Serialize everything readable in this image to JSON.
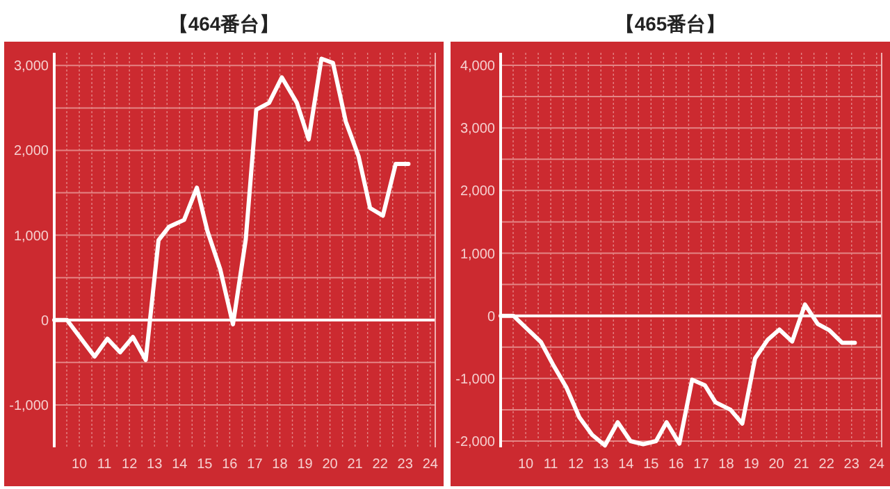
{
  "chart_data": [
    {
      "type": "line",
      "title": "【464番台】",
      "xlim": [
        9,
        24.2
      ],
      "ylim": [
        -1500,
        3150
      ],
      "xticks": [
        {
          "value": 9.5,
          "label": null
        },
        10,
        {
          "value": 10.5,
          "label": null
        },
        11,
        {
          "value": 11.5,
          "label": null
        },
        12,
        {
          "value": 12.5,
          "label": null
        },
        13,
        {
          "value": 13.5,
          "label": null
        },
        14,
        {
          "value": 14.5,
          "label": null
        },
        15,
        {
          "value": 15.5,
          "label": null
        },
        16,
        {
          "value": 16.5,
          "label": null
        },
        17,
        {
          "value": 17.5,
          "label": null
        },
        18,
        {
          "value": 18.5,
          "label": null
        },
        19,
        {
          "value": 19.5,
          "label": null
        },
        20,
        {
          "value": 20.5,
          "label": null
        },
        21,
        {
          "value": 21.5,
          "label": null
        },
        22,
        {
          "value": 22.5,
          "label": null
        },
        23,
        {
          "value": 23.5,
          "label": null
        },
        24
      ],
      "yticks": [
        {
          "value": -1000,
          "label": "-1,000"
        },
        {
          "value": -500,
          "label": null
        },
        0,
        {
          "value": 500,
          "label": null
        },
        {
          "value": 1000,
          "label": "1,000"
        },
        {
          "value": 1500,
          "label": null
        },
        {
          "value": 2000,
          "label": "2,000"
        },
        {
          "value": 2500,
          "label": null
        },
        {
          "value": 3000,
          "label": "3,000"
        }
      ],
      "grid": true,
      "ref_lines": [
        {
          "axis": "y",
          "value": 0,
          "color": "#ffffff"
        }
      ],
      "x": [
        9,
        9.51,
        10.61,
        11.12,
        11.63,
        12.14,
        12.65,
        13.16,
        13.58,
        14.18,
        14.69,
        15.11,
        15.62,
        16.13,
        16.64,
        17.06,
        17.57,
        18.08,
        18.68,
        19.15,
        19.66,
        20.12,
        20.63,
        21.14,
        21.6,
        22.11,
        22.62,
        23.13
      ],
      "series": [
        {
          "color": "#ffffff",
          "values": [
            0,
            0,
            -430,
            -220,
            -380,
            -200,
            -470,
            940,
            1100,
            1180,
            1560,
            1050,
            600,
            -50,
            950,
            2480,
            2560,
            2860,
            2560,
            2130,
            3080,
            3030,
            2340,
            1930,
            1320,
            1230,
            1840,
            1840
          ]
        }
      ]
    },
    {
      "type": "line",
      "title": "【465番台】",
      "xlim": [
        9,
        24.2
      ],
      "ylim": [
        -2100,
        4200
      ],
      "xticks": [
        {
          "value": 9.5,
          "label": null
        },
        10,
        {
          "value": 10.5,
          "label": null
        },
        11,
        {
          "value": 11.5,
          "label": null
        },
        12,
        {
          "value": 12.5,
          "label": null
        },
        13,
        {
          "value": 13.5,
          "label": null
        },
        14,
        {
          "value": 14.5,
          "label": null
        },
        15,
        {
          "value": 15.5,
          "label": null
        },
        16,
        {
          "value": 16.5,
          "label": null
        },
        17,
        {
          "value": 17.5,
          "label": null
        },
        18,
        {
          "value": 18.5,
          "label": null
        },
        19,
        {
          "value": 19.5,
          "label": null
        },
        20,
        {
          "value": 20.5,
          "label": null
        },
        21,
        {
          "value": 21.5,
          "label": null
        },
        22,
        {
          "value": 22.5,
          "label": null
        },
        23,
        {
          "value": 23.5,
          "label": null
        },
        24
      ],
      "yticks": [
        {
          "value": -2000,
          "label": "-2,000"
        },
        {
          "value": -1500,
          "label": null
        },
        {
          "value": -1000,
          "label": "-1,000"
        },
        {
          "value": -500,
          "label": null
        },
        0,
        {
          "value": 500,
          "label": null
        },
        {
          "value": 1000,
          "label": "1,000"
        },
        {
          "value": 1500,
          "label": null
        },
        {
          "value": 2000,
          "label": "2,000"
        },
        {
          "value": 2500,
          "label": null
        },
        {
          "value": 3000,
          "label": "3,000"
        },
        {
          "value": 3500,
          "label": null
        },
        {
          "value": 4000,
          "label": "4,000"
        }
      ],
      "grid": true,
      "ref_lines": [
        {
          "axis": "y",
          "value": 0,
          "color": "#ffffff"
        }
      ],
      "x": [
        9,
        9.51,
        10.61,
        11.12,
        11.63,
        12.14,
        12.65,
        13.16,
        13.67,
        14.18,
        14.69,
        15.2,
        15.62,
        16.13,
        16.64,
        17.15,
        17.57,
        18.17,
        18.64,
        19.15,
        19.66,
        20.12,
        20.63,
        21.14,
        21.65,
        22.11,
        22.62,
        23.13
      ],
      "series": [
        {
          "color": "#ffffff",
          "values": [
            0,
            0,
            -420,
            -800,
            -1150,
            -1620,
            -1900,
            -2070,
            -1700,
            -2000,
            -2050,
            -2000,
            -1700,
            -2040,
            -1020,
            -1110,
            -1380,
            -1500,
            -1720,
            -680,
            -380,
            -220,
            -410,
            180,
            -130,
            -230,
            -430,
            -430
          ]
        }
      ]
    }
  ]
}
